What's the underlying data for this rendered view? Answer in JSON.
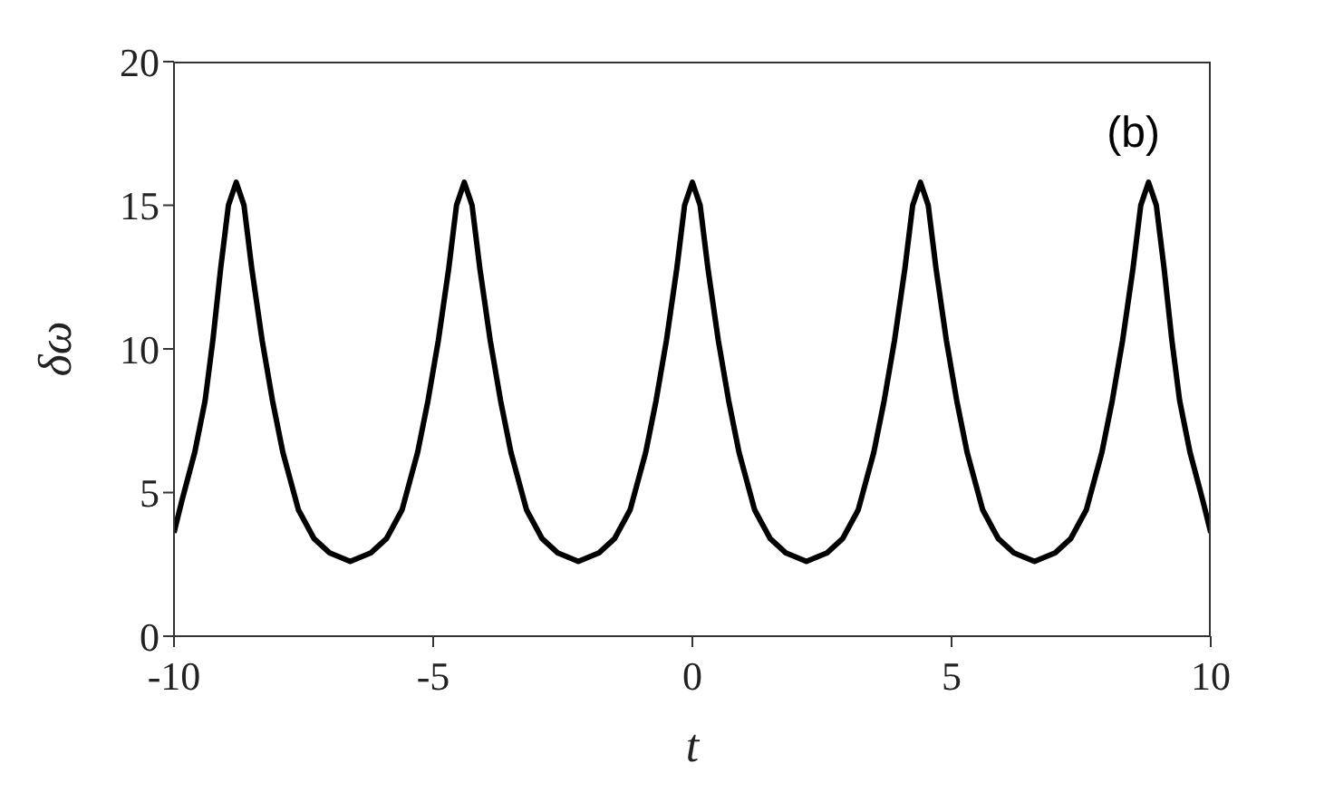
{
  "chart_data": {
    "type": "line",
    "xlabel": "t",
    "ylabel": "δω",
    "annotations": [
      "(b)"
    ],
    "xlim": [
      -10,
      10
    ],
    "xticks": [
      {
        "value": -10,
        "label": "-10"
      },
      {
        "value": -5,
        "label": "-5"
      },
      0,
      5,
      10
    ],
    "ylim": [
      0,
      20
    ],
    "yticks": [
      0,
      5,
      10,
      15,
      20
    ],
    "grid": false,
    "legend": false,
    "marker": "none",
    "line_style": "solid",
    "series": [
      {
        "color": "#000000",
        "x": [
          -10,
          -9.85,
          -9.6,
          -9.4,
          -9.25,
          -9.1,
          -8.95,
          -8.8,
          -8.65,
          -8.5,
          -8.3,
          -8.1,
          -7.9,
          -7.6,
          -7.3,
          -7.0,
          -6.6,
          -6.2,
          -5.9,
          -5.6,
          -5.3,
          -5.1,
          -4.9,
          -4.7,
          -4.55,
          -4.4,
          -4.25,
          -4.1,
          -3.9,
          -3.7,
          -3.5,
          -3.2,
          -2.9,
          -2.6,
          -2.2,
          -1.8,
          -1.5,
          -1.2,
          -0.9,
          -0.7,
          -0.5,
          -0.3,
          -0.15,
          0,
          0.15,
          0.3,
          0.5,
          0.7,
          0.9,
          1.2,
          1.5,
          1.8,
          2.2,
          2.6,
          2.9,
          3.2,
          3.5,
          3.7,
          3.9,
          4.1,
          4.25,
          4.4,
          4.55,
          4.7,
          4.9,
          5.1,
          5.3,
          5.6,
          5.9,
          6.2,
          6.6,
          7.0,
          7.3,
          7.6,
          7.9,
          8.1,
          8.3,
          8.5,
          8.65,
          8.8,
          8.95,
          9.1,
          9.25,
          9.4,
          9.6,
          9.85,
          10
        ],
        "values": [
          3.6,
          4.7,
          6.4,
          8.2,
          10.3,
          12.8,
          15,
          15.8,
          15,
          12.8,
          10.3,
          8.2,
          6.4,
          4.4,
          3.4,
          2.9,
          2.6,
          2.9,
          3.4,
          4.4,
          6.4,
          8.2,
          10.3,
          12.8,
          15,
          15.8,
          15,
          12.8,
          10.3,
          8.2,
          6.4,
          4.4,
          3.4,
          2.9,
          2.6,
          2.9,
          3.4,
          4.4,
          6.4,
          8.2,
          10.3,
          12.8,
          15,
          15.8,
          15,
          12.8,
          10.3,
          8.2,
          6.4,
          4.4,
          3.4,
          2.9,
          2.6,
          2.9,
          3.4,
          4.4,
          6.4,
          8.2,
          10.3,
          12.8,
          15,
          15.8,
          15,
          12.8,
          10.3,
          8.2,
          6.4,
          4.4,
          3.4,
          2.9,
          2.6,
          2.9,
          3.4,
          4.4,
          6.4,
          8.2,
          10.3,
          12.8,
          15,
          15.8,
          15,
          12.8,
          10.3,
          8.2,
          6.4,
          4.7,
          3.6
        ]
      }
    ]
  }
}
